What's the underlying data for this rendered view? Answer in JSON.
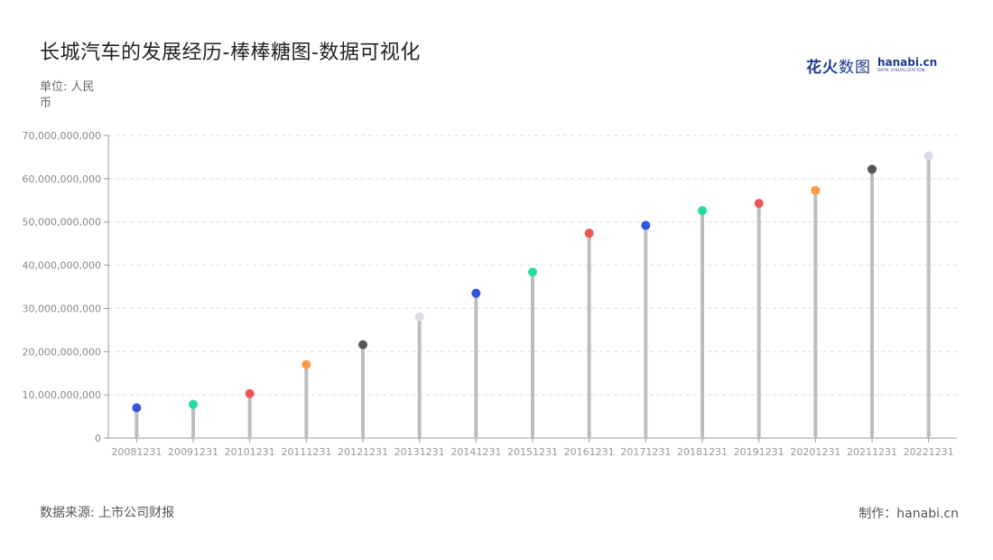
{
  "title": "长城汽车的发展经历-棒棒糖图-数据可视化",
  "unit_label": "单位: 人民币",
  "source_label": "数据来源: 上市公司财报",
  "credit_label": "制作：hanabi.cn",
  "brand": {
    "name_cn_bold": "花火",
    "name_cn_thin": "数图",
    "name_en": "hanabi.cn",
    "tagline": "DATA VISUALIZATION"
  },
  "colors": {
    "stem": "#bdbdbd",
    "grid": "#dddddd",
    "axis": "#999999"
  },
  "chart_data": {
    "type": "lollipop",
    "ylim": [
      0,
      70000000000
    ],
    "y_ticks": [
      "0",
      "10,000,000,000",
      "20,000,000,000",
      "30,000,000,000",
      "40,000,000,000",
      "50,000,000,000",
      "60,000,000,000",
      "70,000,000,000"
    ],
    "grid": true,
    "categories": [
      "20081231",
      "20091231",
      "20101231",
      "20111231",
      "20121231",
      "20131231",
      "20141231",
      "20151231",
      "20161231",
      "20171231",
      "20181231",
      "20191231",
      "20201231",
      "20211231",
      "20221231"
    ],
    "values": [
      7000000000,
      7800000000,
      10300000000,
      17000000000,
      21600000000,
      28000000000,
      33500000000,
      38400000000,
      47400000000,
      49200000000,
      52600000000,
      54300000000,
      57300000000,
      62200000000,
      65300000000
    ],
    "point_colors": [
      "#3355dd",
      "#22dd99",
      "#f05555",
      "#ff9944",
      "#555555",
      "#d8dce8",
      "#3355dd",
      "#22dd99",
      "#f05555",
      "#3355dd",
      "#22dd99",
      "#f05555",
      "#ff9944",
      "#555555",
      "#d8dce8"
    ]
  }
}
